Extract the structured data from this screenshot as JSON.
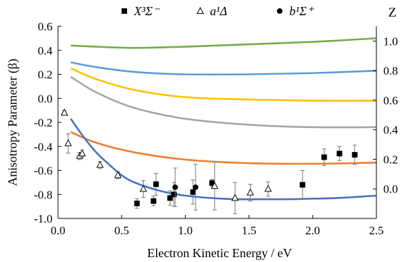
{
  "chart_data": {
    "type": "scatter",
    "xlabel": "Electron Kinetic Energy / eV",
    "ylabel": "Anisotropy Parameter (β)",
    "y2label": "Z",
    "xlim": [
      0,
      2.5
    ],
    "ylim": [
      -1.0,
      0.6
    ],
    "y2lim": [
      -0.2,
      1.1
    ],
    "x_ticks": [
      "0.0",
      "0.5",
      "1.0",
      "1.5",
      "2.0",
      "2.5"
    ],
    "y_ticks": [
      "-1.0",
      "-0.8",
      "-0.6",
      "-0.4",
      "-0.2",
      "0.0",
      "0.2",
      "0.4",
      "0.6"
    ],
    "y2_ticks": [
      "0.0",
      "0.2",
      "0.4",
      "0.6",
      "0.8",
      "1.0"
    ],
    "grid": false,
    "legend_position": "top",
    "legend": [
      {
        "marker": "square-filled",
        "label": "X³Σ⁻"
      },
      {
        "marker": "triangle-open",
        "label": "a¹Δ"
      },
      {
        "marker": "circle-filled",
        "label": "b¹Σ⁺"
      }
    ],
    "series": [
      {
        "marker": "square-filled",
        "points": [
          {
            "x": 0.62,
            "y": -0.875,
            "err": 0.04
          },
          {
            "x": 0.75,
            "y": -0.855,
            "err": 0.04
          },
          {
            "x": 0.77,
            "y": -0.715,
            "err": 0.09
          },
          {
            "x": 0.88,
            "y": -0.83,
            "err": 0.06
          },
          {
            "x": 0.91,
            "y": -0.8,
            "err": 0.1
          },
          {
            "x": 1.06,
            "y": -0.78,
            "err": 0.1
          },
          {
            "x": 1.21,
            "y": -0.705,
            "err": 0.03
          },
          {
            "x": 1.92,
            "y": -0.72,
            "err": 0.12
          },
          {
            "x": 2.09,
            "y": -0.49,
            "err": 0.07
          },
          {
            "x": 2.21,
            "y": -0.46,
            "err": 0.06
          },
          {
            "x": 2.33,
            "y": -0.47,
            "err": 0.08
          }
        ]
      },
      {
        "marker": "triangle-open",
        "points": [
          {
            "x": 0.05,
            "y": -0.12,
            "err": 0.02
          },
          {
            "x": 0.08,
            "y": -0.375,
            "err": 0.08
          },
          {
            "x": 0.17,
            "y": -0.48,
            "err": 0.03
          },
          {
            "x": 0.19,
            "y": -0.46,
            "err": 0.03
          },
          {
            "x": 0.33,
            "y": -0.555,
            "err": 0.03
          },
          {
            "x": 0.47,
            "y": -0.64,
            "err": 0.03
          },
          {
            "x": 0.67,
            "y": -0.755,
            "err": 0.07
          },
          {
            "x": 1.23,
            "y": -0.73,
            "err": 0.2
          },
          {
            "x": 1.39,
            "y": -0.83,
            "err": 0.13
          },
          {
            "x": 1.51,
            "y": -0.785,
            "err": 0.07
          },
          {
            "x": 1.65,
            "y": -0.755,
            "err": 0.06
          }
        ]
      },
      {
        "marker": "circle-filled",
        "points": [
          {
            "x": 0.92,
            "y": -0.74,
            "err": 0.16
          },
          {
            "x": 1.08,
            "y": -0.74,
            "err": 0.19
          }
        ]
      }
    ],
    "model_curves": [
      {
        "color": "#70ad47",
        "x": [
          0.1,
          0.3,
          0.6,
          1.0,
          1.5,
          2.0,
          2.5
        ],
        "y": [
          0.44,
          0.43,
          0.42,
          0.43,
          0.45,
          0.47,
          0.5
        ]
      },
      {
        "color": "#5b9bd5",
        "x": [
          0.1,
          0.3,
          0.6,
          1.0,
          1.5,
          2.0,
          2.5
        ],
        "y": [
          0.3,
          0.26,
          0.22,
          0.2,
          0.2,
          0.21,
          0.23
        ]
      },
      {
        "color": "#ffc000",
        "x": [
          0.1,
          0.3,
          0.6,
          1.0,
          1.5,
          2.0,
          2.5
        ],
        "y": [
          0.25,
          0.16,
          0.07,
          0.01,
          -0.01,
          -0.02,
          -0.02
        ]
      },
      {
        "color": "#a5a5a5",
        "x": [
          0.1,
          0.3,
          0.6,
          1.0,
          1.5,
          2.0,
          2.5
        ],
        "y": [
          0.18,
          0.05,
          -0.08,
          -0.17,
          -0.22,
          -0.24,
          -0.24
        ]
      },
      {
        "color": "#ed7d31",
        "x": [
          0.1,
          0.3,
          0.6,
          1.0,
          1.5,
          2.0,
          2.5
        ],
        "y": [
          -0.28,
          -0.37,
          -0.45,
          -0.51,
          -0.54,
          -0.545,
          -0.535
        ]
      },
      {
        "color": "#4472c4",
        "x": [
          0.1,
          0.2,
          0.3,
          0.4,
          0.5,
          0.6,
          0.8,
          1.0,
          1.2,
          1.4,
          1.6,
          1.8,
          2.0,
          2.2,
          2.5
        ],
        "y": [
          -0.17,
          -0.32,
          -0.45,
          -0.55,
          -0.64,
          -0.7,
          -0.77,
          -0.81,
          -0.83,
          -0.84,
          -0.84,
          -0.84,
          -0.835,
          -0.83,
          -0.81
        ]
      }
    ]
  }
}
